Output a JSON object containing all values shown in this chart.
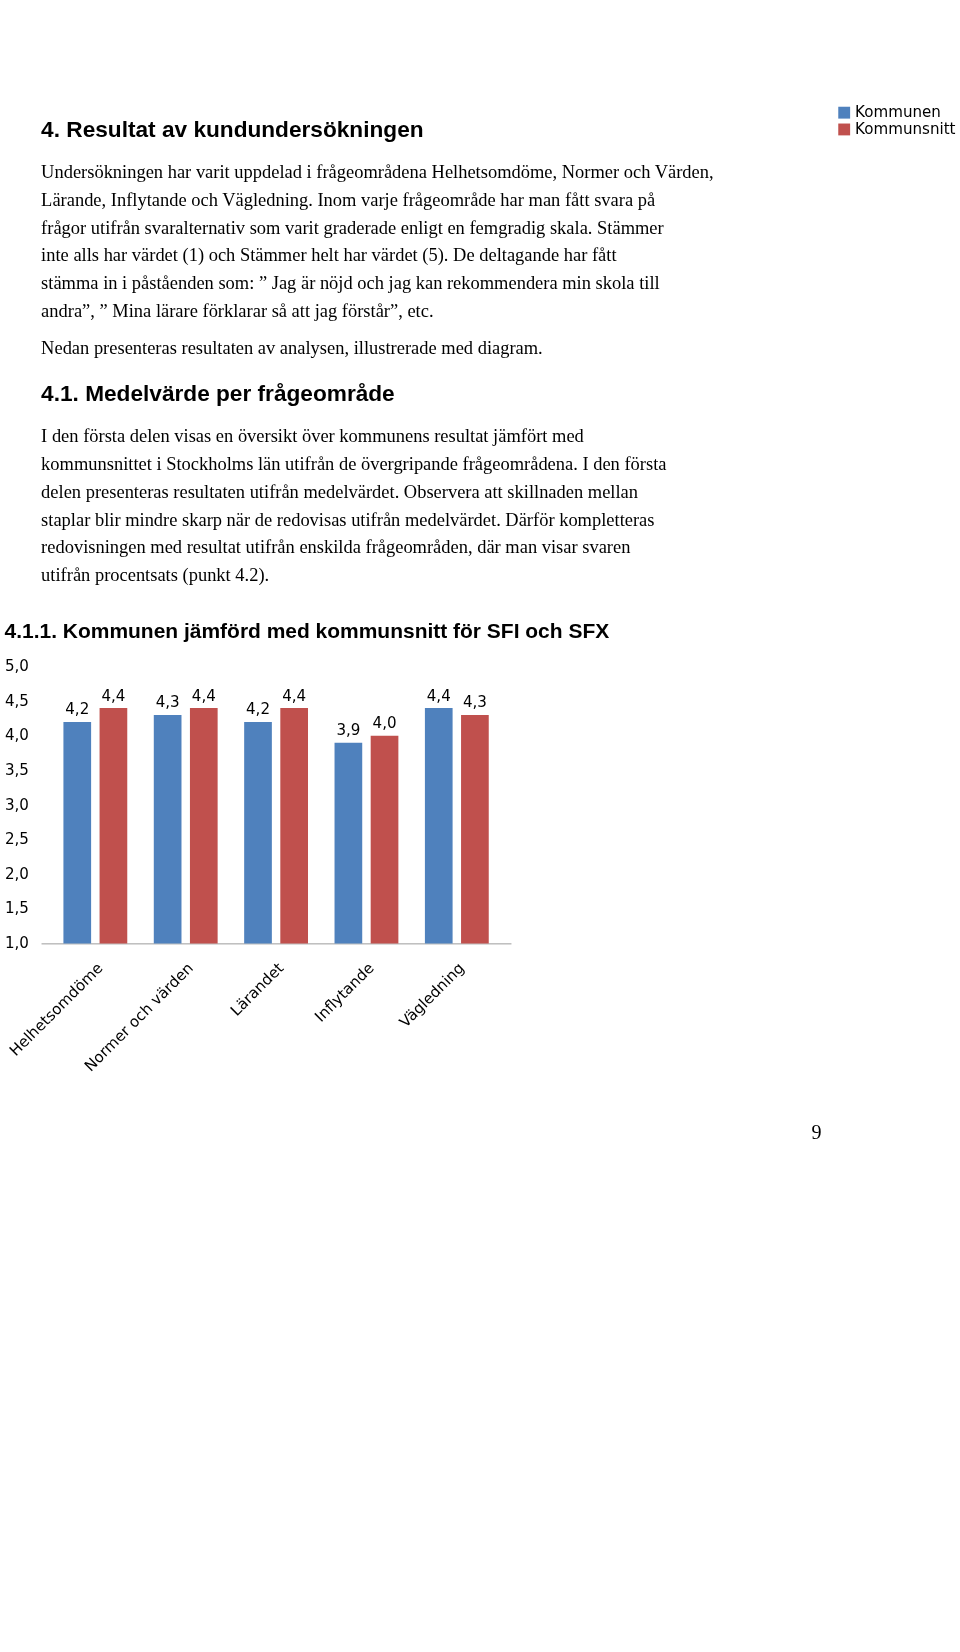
{
  "chart_data": {
    "type": "bar",
    "title": "4.1.1. Kommunen jämförd med kommunsnitt för SFI och SFX",
    "annotations": [
      "4. Resultat av kundundersökningen",
      "Undersökningen har varit uppdelad i frågeområdena Helhetsomdöme, Normer och Värden, Lärande, Inflytande och Vägledning. Inom varje frågeområde har man fått svara på frågor utifrån svaralternativ som varit graderade enligt en femgradig skala. Stämmer inte alls har värdet (1) och Stämmer helt har värdet (5). De deltagande har fått stämma in i påståenden som: ” Jag är nöjd och jag kan rekommendera min skola till andra”, ” Mina lärare förklarar så att jag förstår”, etc.",
      "Nedan presenteras resultaten av analysen, illustrerade med diagram.",
      "4.1. Medelvärde per frågeområde",
      "I den första delen visas en översikt över kommunens resultat jämfört med kommunsnittet i Stockholms län utifrån de övergripande frågeområdena. I den första delen presenteras resultaten utifrån medelvärdet. Observera att skillnaden mellan staplar blir mindre skarp när de redovisas utifrån medelvärdet. Därför kompletteras redovisningen med resultat utifrån enskilda frågeområden, där man visar svaren utifrån procentsats (punkt 4.2).",
      "9"
    ],
    "categories": [
      "Helhetsomdöme",
      "Normer och värden",
      "Lärandet",
      "Inflytande",
      "Vägledning"
    ],
    "series": [
      {
        "name": "Kommunen",
        "color": "#4f81bd",
        "values": [
          4.2,
          4.3,
          4.2,
          3.9,
          4.4
        ],
        "value_labels": [
          "4,2",
          "4,3",
          "4,2",
          "3,9",
          "4,4"
        ]
      },
      {
        "name": "Kommunsnitt",
        "color": "#c0504d",
        "values": [
          4.4,
          4.4,
          4.4,
          4.0,
          4.3
        ],
        "value_labels": [
          "4,4",
          "4,4",
          "4,4",
          "4,0",
          "4,3"
        ]
      }
    ],
    "ylim": [
      1,
      5
    ],
    "yticks": [
      {
        "value": 1,
        "label": "1,0"
      },
      {
        "value": 1.5,
        "label": "1,5"
      },
      {
        "value": 2,
        "label": "2,0"
      },
      {
        "value": 2.5,
        "label": "2,5"
      },
      {
        "value": 3,
        "label": "3,0"
      },
      {
        "value": 3.5,
        "label": "3,5"
      },
      {
        "value": 4,
        "label": "4,0"
      },
      {
        "value": 4.5,
        "label": "4,5"
      },
      {
        "value": 5,
        "label": "5,0"
      }
    ],
    "grid": false,
    "legend": "right"
  }
}
